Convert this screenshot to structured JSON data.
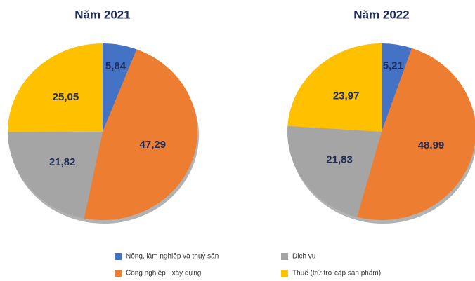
{
  "chart_data": [
    {
      "type": "pie",
      "title": "Năm 2021",
      "values": [
        5.84,
        47.29,
        21.82,
        25.05
      ],
      "value_labels": [
        "5,84",
        "47,29",
        "21,82",
        "25,05"
      ]
    },
    {
      "type": "pie",
      "title": "Năm 2022",
      "values": [
        5.21,
        48.99,
        21.83,
        23.97
      ],
      "value_labels": [
        "5,21",
        "48,99",
        "21,83",
        "23,97"
      ]
    }
  ],
  "legend": {
    "labels": [
      "Nông, lâm nghiệp và thuỷ sản",
      "Công nghiệp - xây dựng",
      "Dịch vụ",
      "Thuế (trừ trợ cấp sản phẩm)"
    ],
    "colors": [
      "#4472c4",
      "#ed7d31",
      "#a5a5a5",
      "#ffc000"
    ]
  }
}
